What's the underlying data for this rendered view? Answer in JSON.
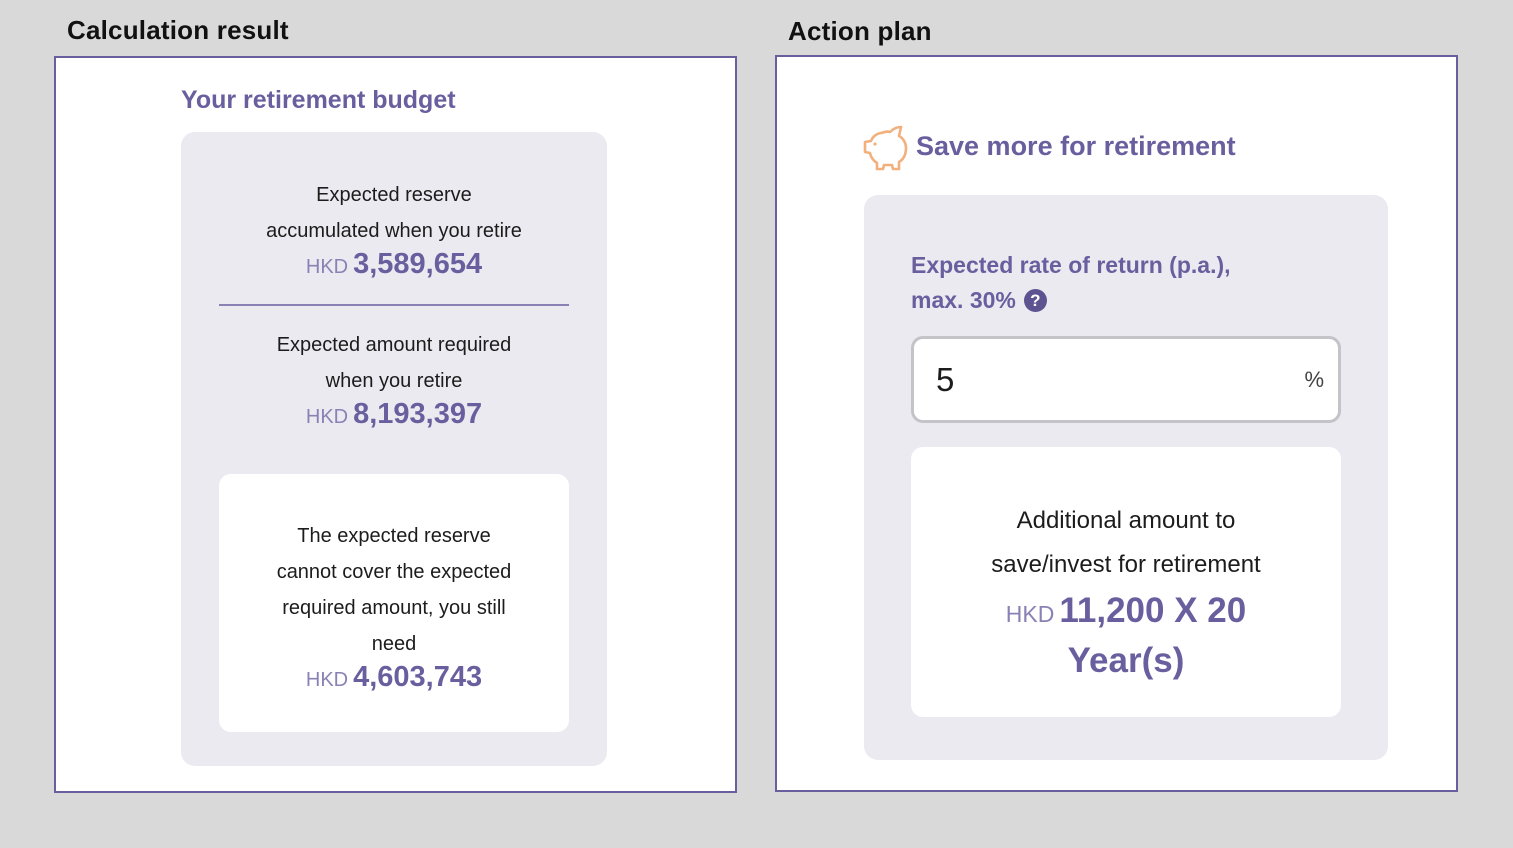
{
  "left_section": {
    "heading": "Calculation result",
    "title": "Your retirement budget",
    "reserve": {
      "label_line1": "Expected reserve",
      "label_line2": "accumulated when you retire",
      "currency": "HKD",
      "amount": "3,589,654"
    },
    "required": {
      "label_line1": "Expected amount required",
      "label_line2": "when you retire",
      "currency": "HKD",
      "amount": "8,193,397"
    },
    "shortfall": {
      "label_line1": "The expected reserve",
      "label_line2": "cannot cover the expected",
      "label_line3": "required amount, you still",
      "label_line4": "need",
      "currency": "HKD",
      "amount": "4,603,743"
    }
  },
  "right_section": {
    "heading": "Action plan",
    "title": "Save more for retirement",
    "icon": "piggy-bank-icon",
    "rate": {
      "label_line1": "Expected rate of return (p.a.),",
      "label_line2": "max. 30%",
      "help_glyph": "?",
      "value": "5",
      "unit": "%"
    },
    "additional": {
      "label_line1": "Additional amount to",
      "label_line2": "save/invest for retirement",
      "currency": "HKD",
      "amount_line1": "11,200 X 20",
      "amount_line2": "Year(s)"
    }
  },
  "colors": {
    "accent": "#6a5f9e",
    "card_bg": "#ebeaf0",
    "piggy": "#f2b07d"
  }
}
